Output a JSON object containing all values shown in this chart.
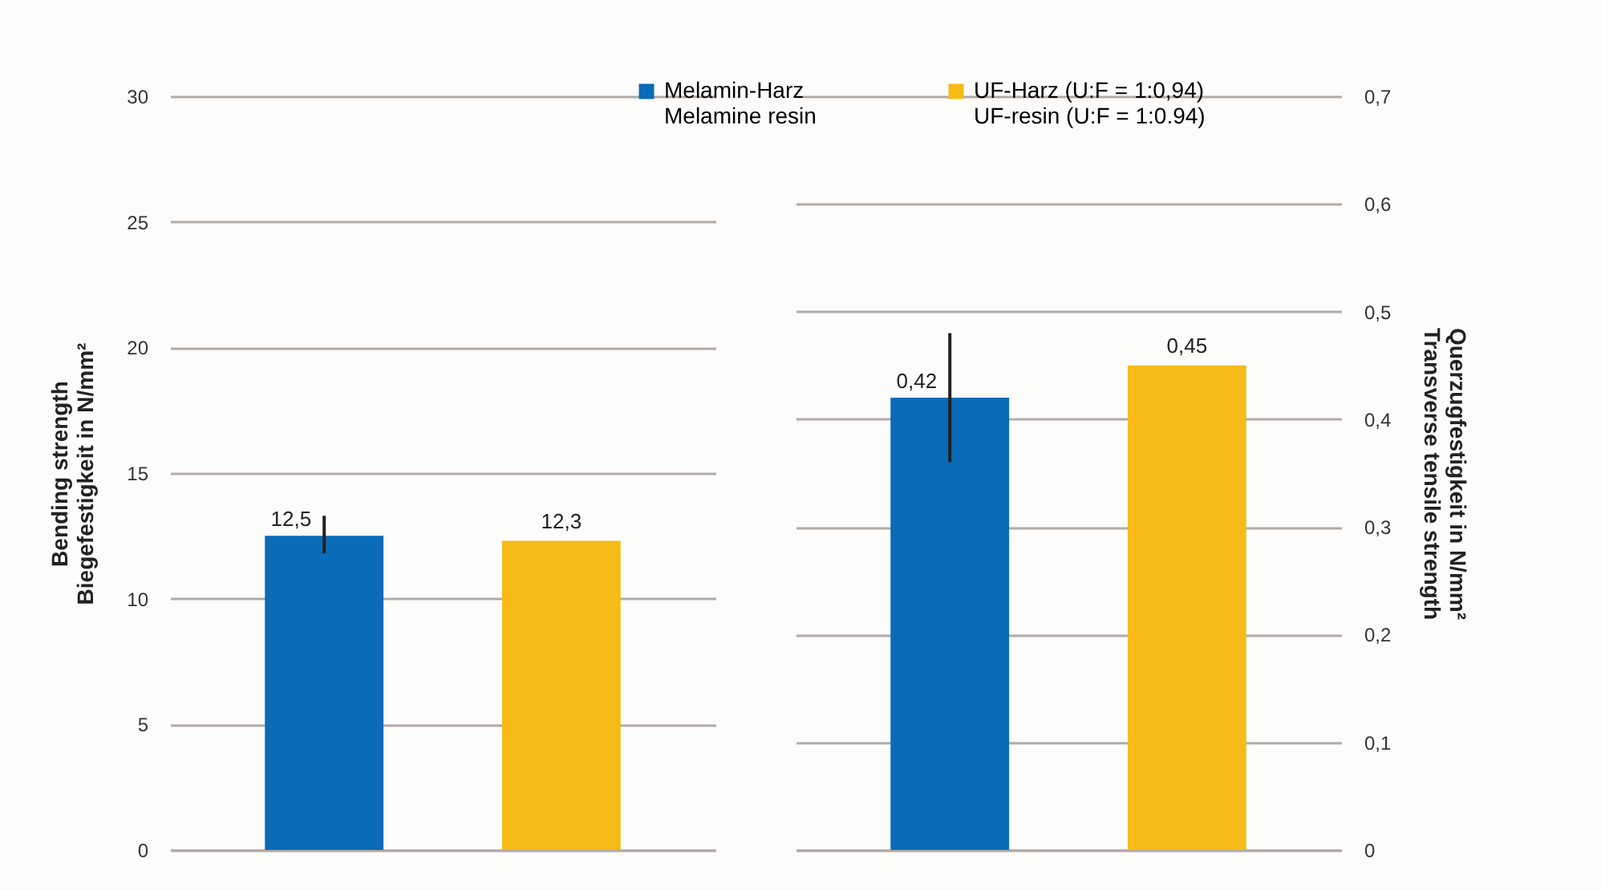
{
  "chart_data": [
    {
      "type": "bar",
      "categories": [
        null,
        null
      ],
      "ylabel": "Bending strength\nBiegefestigkeit in N/mm²",
      "ylim": [
        0,
        30
      ],
      "yticks": [
        0,
        5,
        10,
        15,
        20,
        25,
        30
      ],
      "grid": "y",
      "legend": "top",
      "series": [
        {
          "name": "Melamin-Harz\nMelamine resin",
          "color": "#0a6bb8",
          "values": [
            12.5,
            null
          ],
          "errors": [
            [
              11.8,
              13.3
            ],
            null
          ],
          "value_labels": [
            "12,5",
            null
          ]
        },
        {
          "name": "UF-Harz (U:F = 1:0,94)\nUF-resin (U:F = 1:0.94)",
          "color": "#f6bb17",
          "values": [
            null,
            12.3
          ],
          "value_labels": [
            null,
            "12,3"
          ]
        }
      ]
    },
    {
      "type": "bar",
      "categories": [
        null,
        null
      ],
      "y2label": "Querzugfestigkeit in N/mm²\nTransverse tensile strength",
      "y2lim": [
        0,
        0.7
      ],
      "y2ticks": [
        {
          "value": 0,
          "label": "0"
        },
        {
          "value": 0.1,
          "label": "0,1"
        },
        {
          "value": 0.2,
          "label": "0,2"
        },
        {
          "value": 0.3,
          "label": "0,3"
        },
        {
          "value": 0.4,
          "label": "0,4"
        },
        {
          "value": 0.5,
          "label": "0,5"
        },
        {
          "value": 0.6,
          "label": "0,6"
        },
        {
          "value": 0.7,
          "label": "0,7"
        }
      ],
      "grid": "y",
      "legend": "top",
      "series": [
        {
          "name": "Melamin-Harz\nMelamine resin",
          "color": "#0a6bb8",
          "axis": "y2",
          "values": [
            0.42,
            null
          ],
          "errors": [
            [
              0.36,
              0.48
            ],
            null
          ],
          "value_labels": [
            "0,42",
            null
          ]
        },
        {
          "name": "UF-Harz (U:F = 1:0,94)\nUF-resin (U:F = 1:0.94)",
          "color": "#f6bb17",
          "axis": "y2",
          "values": [
            null,
            0.45
          ],
          "value_labels": [
            null,
            "0,45"
          ]
        }
      ]
    }
  ]
}
